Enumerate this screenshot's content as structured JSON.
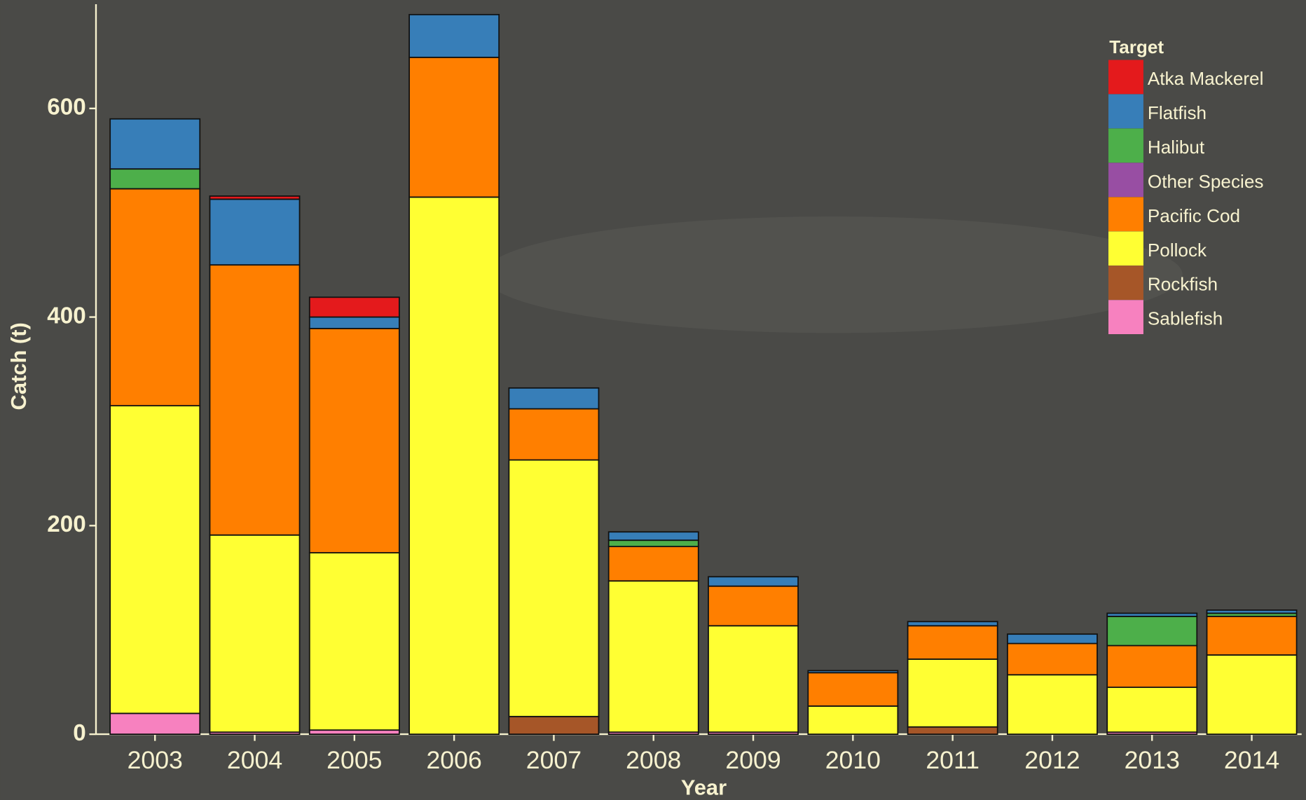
{
  "chart_data": {
    "type": "stacked_bar",
    "x_label": "Year",
    "y_label": "Catch (t)",
    "legend_title": "Target",
    "legend_position": "top-right",
    "categories": [
      "2003",
      "2004",
      "2005",
      "2006",
      "2007",
      "2008",
      "2009",
      "2010",
      "2011",
      "2012",
      "2013",
      "2014"
    ],
    "ylim": [
      0,
      700
    ],
    "yticks": [
      0,
      200,
      400,
      600
    ],
    "series": [
      {
        "name": "Atka Mackerel",
        "color": "#e41a1c",
        "values": [
          0,
          3,
          19,
          0,
          0,
          0,
          0,
          0,
          0,
          0,
          0,
          0
        ]
      },
      {
        "name": "Flatfish",
        "color": "#377eb8",
        "values": [
          48,
          63,
          11,
          41,
          20,
          8,
          9,
          2,
          4,
          9,
          3,
          3
        ]
      },
      {
        "name": "Halibut",
        "color": "#4daf4a",
        "values": [
          19,
          0,
          0,
          0,
          0,
          6,
          0,
          0,
          0,
          0,
          28,
          3
        ]
      },
      {
        "name": "Other Species",
        "color": "#984ea3",
        "values": [
          0,
          0,
          0,
          0,
          0,
          0,
          0,
          0,
          0,
          0,
          0,
          0
        ]
      },
      {
        "name": "Pacific Cod",
        "color": "#ff7f00",
        "values": [
          208,
          259,
          215,
          134,
          49,
          33,
          38,
          32,
          32,
          30,
          40,
          37
        ]
      },
      {
        "name": "Pollock",
        "color": "#ffff33",
        "values": [
          295,
          189,
          170,
          515,
          246,
          145,
          102,
          27,
          65,
          57,
          43,
          76
        ]
      },
      {
        "name": "Rockfish",
        "color": "#a65628",
        "values": [
          0,
          0,
          0,
          0,
          17,
          0,
          0,
          0,
          7,
          0,
          0,
          0
        ]
      },
      {
        "name": "Sablefish",
        "color": "#f781bf",
        "values": [
          20,
          2,
          4,
          0,
          0,
          2,
          2,
          0,
          0,
          0,
          2,
          0
        ]
      }
    ]
  }
}
